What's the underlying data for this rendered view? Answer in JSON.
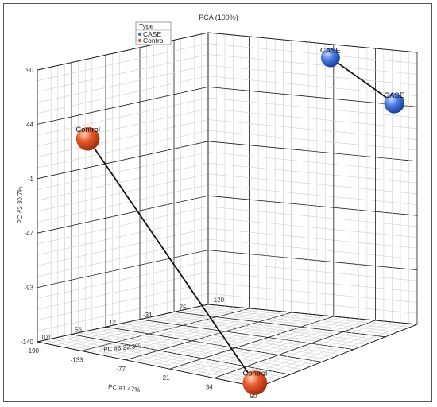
{
  "chart_data": {
    "type": "scatter",
    "title": "PCA (100%)",
    "legend": {
      "title": "Type",
      "placement": "top-left",
      "entries": [
        {
          "label": "CASE",
          "color": "#3f6fd6"
        },
        {
          "label": "Control",
          "color": "#e2552a"
        }
      ]
    },
    "axes": {
      "x": {
        "label": "PC #1  47%",
        "ticks": [
          "-190",
          "-133",
          "-77",
          "-21",
          "34",
          "90"
        ]
      },
      "y": {
        "label": "PC #2 30.7%",
        "ticks": [
          "-140",
          "-93",
          "-47",
          "-1",
          "44",
          "90"
        ]
      },
      "z": {
        "label": "PC #3 22.3%",
        "ticks": [
          "101",
          "56",
          "12",
          "-31",
          "-75",
          "-120"
        ]
      }
    },
    "points": [
      {
        "label": "CASE",
        "group": "CASE",
        "x": -35,
        "y": 90,
        "z": -120
      },
      {
        "label": "CASE",
        "group": "CASE",
        "x": 90,
        "y": 75,
        "z": -75
      },
      {
        "label": "Control",
        "group": "Control",
        "x": -170,
        "y": 28,
        "z": 56
      },
      {
        "label": "Control",
        "group": "Control",
        "x": 75,
        "y": -140,
        "z": 90
      }
    ],
    "links": [
      [
        0,
        1
      ],
      [
        2,
        3
      ]
    ],
    "grid": true
  }
}
